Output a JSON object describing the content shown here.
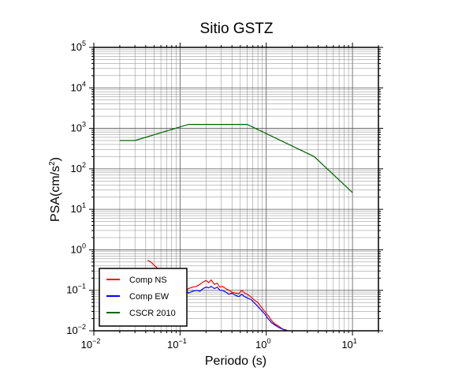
{
  "chart_data": {
    "type": "line",
    "title": "Sitio GSTZ",
    "xlabel": "Periodo (s)",
    "ylabel": {
      "base": "PSA(cm/s",
      "sup": "2",
      "tail": ")"
    },
    "xscale": "log",
    "yscale": "log",
    "xlim": [
      0.01,
      20
    ],
    "ylim": [
      0.01,
      100000
    ],
    "grid": true,
    "legend_position": "bottom-left",
    "x_ticks": [
      {
        "base": "10",
        "exp": "−2",
        "value": 0.01
      },
      {
        "base": "10",
        "exp": "−1",
        "value": 0.1
      },
      {
        "base": "10",
        "exp": "0",
        "value": 1
      },
      {
        "base": "10",
        "exp": "1",
        "value": 10
      }
    ],
    "y_ticks": [
      {
        "base": "10",
        "exp": "−2",
        "value": 0.01
      },
      {
        "base": "10",
        "exp": "−1",
        "value": 0.1
      },
      {
        "base": "10",
        "exp": "0",
        "value": 1
      },
      {
        "base": "10",
        "exp": "1",
        "value": 10
      },
      {
        "base": "10",
        "exp": "2",
        "value": 100
      },
      {
        "base": "10",
        "exp": "3",
        "value": 1000
      },
      {
        "base": "10",
        "exp": "4",
        "value": 10000
      },
      {
        "base": "10",
        "exp": "5",
        "value": 100000
      }
    ],
    "series": [
      {
        "name": "Comp NS",
        "color": "#ff0000",
        "x": [
          0.042,
          0.046,
          0.05,
          0.055,
          0.06,
          0.066,
          0.072,
          0.08,
          0.088,
          0.096,
          0.105,
          0.115,
          0.125,
          0.14,
          0.155,
          0.17,
          0.185,
          0.2,
          0.215,
          0.23,
          0.25,
          0.27,
          0.29,
          0.31,
          0.34,
          0.37,
          0.4,
          0.44,
          0.48,
          0.52,
          0.56,
          0.6,
          0.66,
          0.72,
          0.8,
          0.88,
          0.96,
          1.05,
          1.15,
          1.25,
          1.4,
          1.55,
          1.7,
          1.8
        ],
        "y": [
          0.55,
          0.5,
          0.42,
          0.35,
          0.3,
          0.24,
          0.2,
          0.17,
          0.14,
          0.12,
          0.11,
          0.1,
          0.11,
          0.12,
          0.125,
          0.14,
          0.16,
          0.175,
          0.155,
          0.18,
          0.14,
          0.15,
          0.12,
          0.125,
          0.11,
          0.1,
          0.09,
          0.085,
          0.082,
          0.1,
          0.085,
          0.08,
          0.07,
          0.058,
          0.05,
          0.038,
          0.03,
          0.024,
          0.018,
          0.015,
          0.013,
          0.011,
          0.0105,
          0.0098
        ]
      },
      {
        "name": "Comp EW",
        "color": "#0000ff",
        "x": [
          0.04,
          0.045,
          0.05,
          0.055,
          0.06,
          0.066,
          0.072,
          0.08,
          0.088,
          0.096,
          0.105,
          0.115,
          0.125,
          0.14,
          0.155,
          0.17,
          0.185,
          0.2,
          0.215,
          0.23,
          0.25,
          0.27,
          0.29,
          0.31,
          0.34,
          0.37,
          0.4,
          0.44,
          0.48,
          0.52,
          0.56,
          0.6,
          0.66,
          0.72,
          0.8,
          0.88,
          0.96,
          1.05,
          1.15,
          1.25,
          1.4,
          1.55,
          1.7,
          1.8
        ],
        "y": [
          0.3,
          0.26,
          0.24,
          0.2,
          0.18,
          0.15,
          0.13,
          0.12,
          0.11,
          0.1,
          0.1,
          0.11,
          0.085,
          0.095,
          0.1,
          0.095,
          0.11,
          0.12,
          0.115,
          0.125,
          0.11,
          0.12,
          0.1,
          0.1,
          0.09,
          0.08,
          0.085,
          0.075,
          0.07,
          0.08,
          0.07,
          0.065,
          0.06,
          0.05,
          0.04,
          0.032,
          0.026,
          0.02,
          0.016,
          0.014,
          0.012,
          0.011,
          0.0102,
          0.0097
        ]
      },
      {
        "name": "CSCR 2010",
        "color": "#006400",
        "x": [
          0.02,
          0.03,
          0.125,
          0.6,
          3.6,
          10
        ],
        "y": [
          500,
          500,
          1250,
          1250,
          200,
          26
        ]
      }
    ]
  }
}
